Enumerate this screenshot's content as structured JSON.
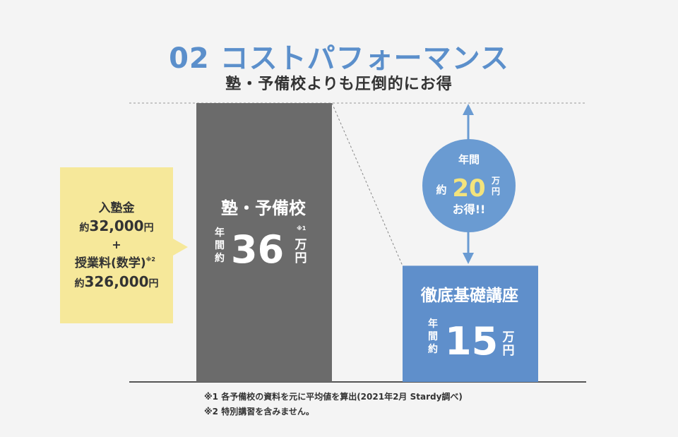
{
  "header": {
    "title": "02 コストパフォーマンス",
    "subtitle": "塾・予備校よりも圧倒的にお得"
  },
  "callout": {
    "line1": "入塾金",
    "line2_prefix": "約",
    "line2_value": "32,000",
    "line2_unit": "円",
    "plus": "+",
    "line3": "授業料(数学)",
    "line3_mark": "※2",
    "line4_prefix": "約",
    "line4_value": "326,000",
    "line4_unit": "円"
  },
  "bar_juku": {
    "name": "塾・予備校",
    "label_prefix": [
      "年",
      "間",
      "約"
    ],
    "value_text": "36",
    "unit": [
      "万",
      "円"
    ],
    "mark": "※1"
  },
  "bar_ours": {
    "name": "徹底基礎講座",
    "label_prefix": [
      "年",
      "間",
      "約"
    ],
    "value_text": "15",
    "unit": [
      "万",
      "円"
    ]
  },
  "savings": {
    "line1": "年間",
    "prefix": "約",
    "value": "20",
    "unit": [
      "万",
      "円"
    ],
    "line3": "お得!!"
  },
  "notes": {
    "note1": "※1 各予備校の資料を元に平均値を算出(2021年2月 Stardy調べ)",
    "note2": "※2 特別講習を含みません。"
  },
  "colors": {
    "title": "#5b8fcb",
    "juku_bar": "#6b6b6b",
    "our_bar": "#5f8fcb",
    "callout": "#f6e89a",
    "savings_circle": "#6a9bd2",
    "savings_value": "#f3e37c"
  },
  "chart_data": {
    "type": "bar",
    "categories": [
      "塾・予備校",
      "徹底基礎講座"
    ],
    "values": [
      36,
      15
    ],
    "unit": "万円",
    "difference": 20
  }
}
